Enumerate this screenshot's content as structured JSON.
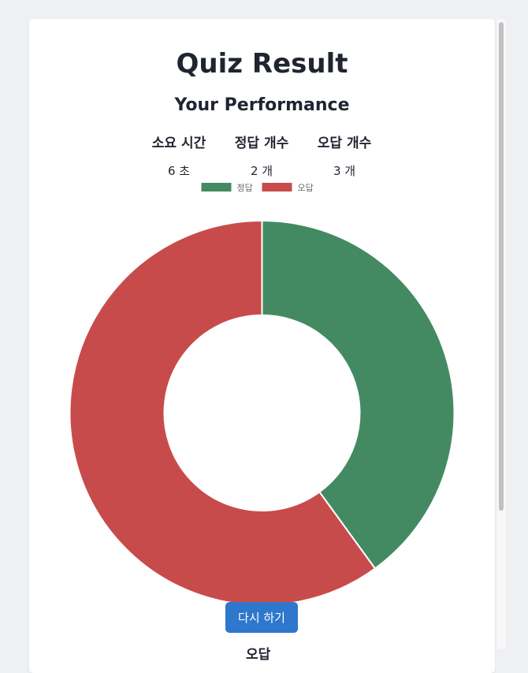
{
  "header": {
    "title": "Quiz Result",
    "subtitle": "Your Performance"
  },
  "stats": [
    {
      "label": "소요 시간",
      "value": "6 초"
    },
    {
      "label": "정답 개수",
      "value": "2 개"
    },
    {
      "label": "오답 개수",
      "value": "3 개"
    }
  ],
  "actions": {
    "retry_label": "다시 하기"
  },
  "below_fold": {
    "partial_heading": "오답"
  },
  "colors": {
    "correct": "#438a63",
    "wrong": "#c84b4b",
    "button": "#2e77cc"
  },
  "chart_data": {
    "type": "pie",
    "style": "donut",
    "categories": [
      "정답",
      "오답"
    ],
    "values": [
      2,
      3
    ],
    "colors": [
      "#438a63",
      "#c84b4b"
    ],
    "legend_position": "top"
  }
}
